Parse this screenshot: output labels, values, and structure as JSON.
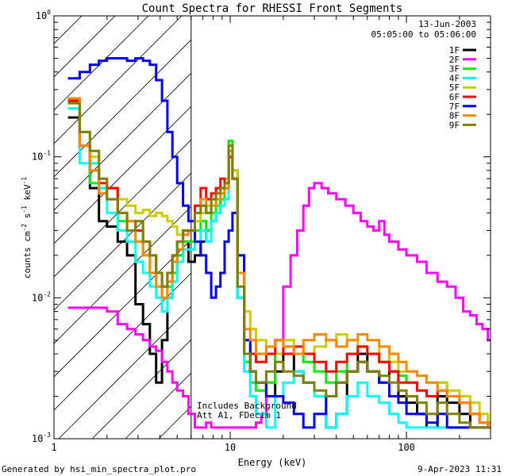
{
  "chart_data": {
    "type": "line",
    "title": "Count Spectra for RHESSI Front Segments",
    "xlabel": "Energy (keV)",
    "ylabel_main": "counts cm",
    "ylabel_exp1": "-2",
    "ylabel_mid": " s",
    "ylabel_exp2": "-1",
    "ylabel_end": " keV",
    "ylabel_exp3": "-1",
    "xscale": "log",
    "yscale": "log",
    "xlim": [
      1,
      300
    ],
    "ylim": [
      0.001,
      1
    ],
    "x_ticks": [
      {
        "value": 1,
        "label": "1"
      },
      {
        "value": 10,
        "label": "10"
      },
      {
        "value": 100,
        "label": "100"
      }
    ],
    "y_ticks": [
      {
        "value": 1,
        "base": "10",
        "exp": "0"
      },
      {
        "value": 0.1,
        "base": "10",
        "exp": "-1"
      },
      {
        "value": 0.01,
        "base": "10",
        "exp": "-2"
      },
      {
        "value": 0.001,
        "base": "10",
        "exp": "-3"
      }
    ],
    "attenuator_boundary_keV": 6,
    "annotations": {
      "date": "13-Jun-2003",
      "time_range": "05:05:00 to 05:06:00",
      "background": "Includes Background",
      "attenuator": "Att A1, FDecim 1"
    },
    "series": [
      {
        "name": "1F",
        "color": "#000000",
        "x": [
          1.2,
          1.4,
          1.6,
          1.8,
          2.0,
          2.3,
          2.6,
          2.9,
          3.2,
          3.5,
          3.8,
          4.1,
          4.4,
          4.7,
          5.0,
          5.4,
          5.8,
          6.3,
          6.8,
          7.3,
          7.8,
          8.3,
          8.8,
          9.3,
          9.8,
          10.3,
          11,
          12,
          13,
          14,
          16,
          18,
          20,
          23,
          26,
          30,
          35,
          40,
          46,
          53,
          60,
          70,
          80,
          90,
          100,
          115,
          130,
          150,
          170,
          200,
          230,
          260,
          290
        ],
        "y": [
          0.19,
          0.12,
          0.06,
          0.035,
          0.032,
          0.025,
          0.02,
          0.009,
          0.0065,
          0.004,
          0.0025,
          0.005,
          0.01,
          0.015,
          0.02,
          0.025,
          0.018,
          0.02,
          0.025,
          0.03,
          0.035,
          0.04,
          0.05,
          0.06,
          0.1,
          0.08,
          0.01,
          0.004,
          0.003,
          0.0025,
          0.002,
          0.003,
          0.004,
          0.003,
          0.0025,
          0.002,
          0.0012,
          0.0015,
          0.003,
          0.004,
          0.003,
          0.0025,
          0.003,
          0.002,
          0.0018,
          0.0015,
          0.0012,
          0.002,
          0.0018,
          0.0015,
          0.0012,
          0.0012,
          0.0013
        ]
      },
      {
        "name": "2F",
        "color": "#ff00ff",
        "x": [
          1.2,
          1.4,
          1.6,
          1.8,
          2.0,
          2.3,
          2.6,
          2.9,
          3.2,
          3.5,
          3.8,
          4.1,
          4.4,
          4.7,
          5.0,
          5.4,
          5.8,
          6.3,
          6.8,
          7.3,
          7.8,
          8.3,
          8.8,
          9.3,
          9.8,
          10.3,
          11,
          12,
          13,
          14,
          15,
          16,
          18,
          20,
          22,
          24,
          26,
          28,
          30,
          33,
          36,
          40,
          45,
          50,
          55,
          60,
          65,
          70,
          75,
          80,
          90,
          100,
          115,
          130,
          150,
          170,
          190,
          210,
          230,
          250,
          270,
          290
        ],
        "y": [
          0.0085,
          0.0085,
          0.0085,
          0.0085,
          0.008,
          0.0065,
          0.006,
          0.0055,
          0.005,
          0.0045,
          0.0042,
          0.0035,
          0.003,
          0.0025,
          0.0022,
          0.002,
          0.0015,
          0.0012,
          0.0012,
          0.0013,
          0.0012,
          0.0012,
          0.0012,
          0.0012,
          0.0012,
          0.0012,
          0.0012,
          0.0012,
          0.0012,
          0.0013,
          0.0015,
          0.0025,
          0.005,
          0.012,
          0.02,
          0.03,
          0.045,
          0.06,
          0.065,
          0.06,
          0.055,
          0.05,
          0.045,
          0.04,
          0.035,
          0.032,
          0.03,
          0.035,
          0.028,
          0.025,
          0.022,
          0.02,
          0.018,
          0.015,
          0.013,
          0.012,
          0.01,
          0.008,
          0.0075,
          0.0065,
          0.006,
          0.005
        ]
      },
      {
        "name": "3F",
        "color": "#00ee00",
        "x": [
          1.2,
          1.4,
          1.6,
          1.8,
          2.0,
          2.3,
          2.6,
          2.9,
          3.2,
          3.5,
          3.8,
          4.1,
          4.4,
          4.7,
          5.0,
          5.4,
          5.8,
          6.3,
          6.8,
          7.3,
          7.8,
          8.3,
          8.8,
          9.3,
          9.8,
          10.3,
          11,
          12,
          13,
          14,
          16,
          18,
          20,
          23,
          26,
          30,
          35,
          40,
          46,
          53,
          60,
          70,
          80,
          90,
          100,
          115,
          130,
          150,
          170,
          200,
          230,
          260,
          290
        ],
        "y": [
          0.22,
          0.12,
          0.065,
          0.06,
          0.05,
          0.035,
          0.03,
          0.025,
          0.02,
          0.015,
          0.012,
          0.01,
          0.012,
          0.015,
          0.02,
          0.025,
          0.025,
          0.03,
          0.035,
          0.03,
          0.04,
          0.045,
          0.05,
          0.06,
          0.13,
          0.08,
          0.012,
          0.0035,
          0.0025,
          0.0022,
          0.0025,
          0.004,
          0.0045,
          0.004,
          0.0035,
          0.003,
          0.0025,
          0.003,
          0.004,
          0.0045,
          0.004,
          0.0035,
          0.003,
          0.0028,
          0.0025,
          0.0022,
          0.002,
          0.0025,
          0.002,
          0.0018,
          0.0015,
          0.0013,
          0.0012
        ]
      },
      {
        "name": "4F",
        "color": "#00ffff",
        "x": [
          1.2,
          1.4,
          1.6,
          1.8,
          2.0,
          2.3,
          2.6,
          2.9,
          3.2,
          3.5,
          3.8,
          4.1,
          4.4,
          4.7,
          5.0,
          5.4,
          5.8,
          6.3,
          6.8,
          7.3,
          7.8,
          8.3,
          8.8,
          9.3,
          9.8,
          10.3,
          11,
          12,
          13,
          14,
          16,
          18,
          20,
          23,
          26,
          30,
          35,
          40,
          46,
          53,
          60,
          70,
          80,
          90,
          100,
          115,
          130,
          150,
          170,
          200,
          230,
          260,
          290
        ],
        "y": [
          0.22,
          0.09,
          0.09,
          0.06,
          0.04,
          0.03,
          0.025,
          0.018,
          0.015,
          0.012,
          0.01,
          0.008,
          0.01,
          0.013,
          0.018,
          0.022,
          0.022,
          0.025,
          0.03,
          0.025,
          0.035,
          0.04,
          0.045,
          0.05,
          0.1,
          0.07,
          0.01,
          0.003,
          0.002,
          0.0015,
          0.0012,
          0.002,
          0.0025,
          0.003,
          0.0025,
          0.002,
          0.0012,
          0.0015,
          0.002,
          0.0025,
          0.002,
          0.0018,
          0.0015,
          0.0013,
          0.0012,
          0.0012,
          0.0012,
          0.0012,
          0.0012,
          0.0012,
          0.0012,
          0.0012,
          0.0012
        ]
      },
      {
        "name": "5F",
        "color": "#cccc00",
        "x": [
          1.2,
          1.4,
          1.6,
          1.8,
          2.0,
          2.3,
          2.6,
          2.9,
          3.2,
          3.5,
          3.8,
          4.1,
          4.4,
          4.7,
          5.0,
          5.4,
          5.8,
          6.3,
          6.8,
          7.3,
          7.8,
          8.3,
          8.8,
          9.3,
          9.8,
          10.3,
          11,
          12,
          13,
          14,
          16,
          18,
          20,
          23,
          26,
          30,
          35,
          40,
          46,
          53,
          60,
          70,
          80,
          90,
          100,
          115,
          130,
          150,
          170,
          200,
          230,
          260,
          290
        ],
        "y": [
          0.24,
          0.15,
          0.1,
          0.07,
          0.06,
          0.05,
          0.045,
          0.04,
          0.042,
          0.038,
          0.04,
          0.038,
          0.035,
          0.032,
          0.028,
          0.03,
          0.03,
          0.035,
          0.04,
          0.045,
          0.05,
          0.055,
          0.06,
          0.07,
          0.1,
          0.08,
          0.02,
          0.008,
          0.006,
          0.005,
          0.0045,
          0.004,
          0.005,
          0.0045,
          0.004,
          0.0045,
          0.005,
          0.0055,
          0.005,
          0.0045,
          0.004,
          0.0045,
          0.0035,
          0.003,
          0.003,
          0.0028,
          0.0025,
          0.0025,
          0.0022,
          0.002,
          0.0018,
          0.0015,
          0.0013
        ]
      },
      {
        "name": "6F",
        "color": "#ff0000",
        "x": [
          1.2,
          1.4,
          1.6,
          1.8,
          2.0,
          2.3,
          2.6,
          2.9,
          3.2,
          3.5,
          3.8,
          4.1,
          4.4,
          4.7,
          5.0,
          5.4,
          5.8,
          6.3,
          6.8,
          7.3,
          7.8,
          8.3,
          8.8,
          9.3,
          9.8,
          10.3,
          11,
          12,
          13,
          14,
          16,
          18,
          20,
          23,
          26,
          30,
          35,
          40,
          46,
          53,
          60,
          70,
          80,
          90,
          100,
          115,
          130,
          150,
          170,
          200,
          230,
          260,
          290
        ],
        "y": [
          0.25,
          0.12,
          0.08,
          0.065,
          0.06,
          0.04,
          0.035,
          0.03,
          0.025,
          0.02,
          0.015,
          0.012,
          0.015,
          0.02,
          0.025,
          0.03,
          0.03,
          0.045,
          0.06,
          0.05,
          0.055,
          0.06,
          0.07,
          0.065,
          0.1,
          0.07,
          0.015,
          0.005,
          0.004,
          0.0035,
          0.004,
          0.005,
          0.004,
          0.0045,
          0.004,
          0.0035,
          0.003,
          0.0035,
          0.004,
          0.0045,
          0.004,
          0.0035,
          0.003,
          0.0025,
          0.0025,
          0.0022,
          0.002,
          0.0022,
          0.002,
          0.0018,
          0.0015,
          0.0013,
          0.0012
        ]
      },
      {
        "name": "7F",
        "color": "#0000ee",
        "x": [
          1.2,
          1.4,
          1.6,
          1.8,
          2.0,
          2.3,
          2.6,
          2.9,
          3.2,
          3.5,
          3.8,
          4.1,
          4.4,
          4.7,
          5.0,
          5.4,
          5.8,
          6.3,
          6.8,
          7.3,
          7.8,
          8.3,
          8.8,
          9.3,
          9.8,
          10.3,
          11,
          12,
          13,
          14,
          16,
          18,
          20,
          23,
          26,
          30,
          35,
          40,
          46,
          53,
          60,
          70,
          80,
          90,
          100,
          115,
          130,
          150,
          170,
          200,
          230,
          260,
          290
        ],
        "y": [
          0.36,
          0.4,
          0.45,
          0.48,
          0.5,
          0.5,
          0.48,
          0.5,
          0.48,
          0.45,
          0.35,
          0.25,
          0.15,
          0.1,
          0.065,
          0.045,
          0.035,
          0.025,
          0.02,
          0.015,
          0.01,
          0.012,
          0.015,
          0.025,
          0.03,
          0.04,
          0.02,
          0.005,
          0.003,
          0.0025,
          0.002,
          0.002,
          0.0018,
          0.0015,
          0.0012,
          0.0015,
          0.002,
          0.0025,
          0.003,
          0.0035,
          0.003,
          0.0025,
          0.002,
          0.0018,
          0.0015,
          0.0015,
          0.0013,
          0.0015,
          0.0012,
          0.0012,
          0.0012,
          0.0012,
          0.0012
        ]
      },
      {
        "name": "8F",
        "color": "#ff8800",
        "x": [
          1.2,
          1.4,
          1.6,
          1.8,
          2.0,
          2.3,
          2.6,
          2.9,
          3.2,
          3.5,
          3.8,
          4.1,
          4.4,
          4.7,
          5.0,
          5.4,
          5.8,
          6.3,
          6.8,
          7.3,
          7.8,
          8.3,
          8.8,
          9.3,
          9.8,
          10.3,
          11,
          12,
          13,
          14,
          16,
          18,
          20,
          23,
          26,
          30,
          35,
          40,
          46,
          53,
          60,
          70,
          80,
          90,
          100,
          115,
          130,
          150,
          170,
          200,
          230,
          260,
          290
        ],
        "y": [
          0.26,
          0.12,
          0.08,
          0.055,
          0.05,
          0.04,
          0.035,
          0.025,
          0.02,
          0.015,
          0.012,
          0.01,
          0.013,
          0.018,
          0.022,
          0.028,
          0.03,
          0.04,
          0.05,
          0.04,
          0.045,
          0.05,
          0.055,
          0.06,
          0.11,
          0.07,
          0.015,
          0.006,
          0.005,
          0.004,
          0.0045,
          0.005,
          0.0045,
          0.004,
          0.005,
          0.0055,
          0.005,
          0.0045,
          0.005,
          0.0055,
          0.005,
          0.0045,
          0.004,
          0.0035,
          0.003,
          0.0028,
          0.0025,
          0.0022,
          0.002,
          0.0018,
          0.0015,
          0.0013,
          0.0012
        ]
      },
      {
        "name": "9F",
        "color": "#808000",
        "x": [
          1.2,
          1.4,
          1.6,
          1.8,
          2.0,
          2.3,
          2.6,
          2.9,
          3.2,
          3.5,
          3.8,
          4.1,
          4.4,
          4.7,
          5.0,
          5.4,
          5.8,
          6.3,
          6.8,
          7.3,
          7.8,
          8.3,
          8.8,
          9.3,
          9.8,
          10.3,
          11,
          12,
          13,
          14,
          16,
          18,
          20,
          23,
          26,
          30,
          35,
          40,
          46,
          53,
          60,
          70,
          80,
          90,
          100,
          115,
          130,
          150,
          170,
          200,
          230,
          260,
          290
        ],
        "y": [
          0.24,
          0.15,
          0.11,
          0.07,
          0.05,
          0.04,
          0.03,
          0.035,
          0.025,
          0.02,
          0.015,
          0.012,
          0.015,
          0.02,
          0.025,
          0.03,
          0.03,
          0.04,
          0.045,
          0.04,
          0.05,
          0.055,
          0.06,
          0.065,
          0.12,
          0.07,
          0.012,
          0.004,
          0.003,
          0.0025,
          0.003,
          0.0035,
          0.003,
          0.0028,
          0.0025,
          0.0022,
          0.002,
          0.0025,
          0.003,
          0.0035,
          0.003,
          0.0028,
          0.0025,
          0.0022,
          0.002,
          0.0018,
          0.0015,
          0.0018,
          0.0015,
          0.0013,
          0.0012,
          0.0012,
          0.0012
        ]
      }
    ]
  },
  "footer": {
    "generated_by": "Generated by hsi_min_spectra_plot.pro",
    "timestamp": "9-Apr-2023 11:31"
  }
}
